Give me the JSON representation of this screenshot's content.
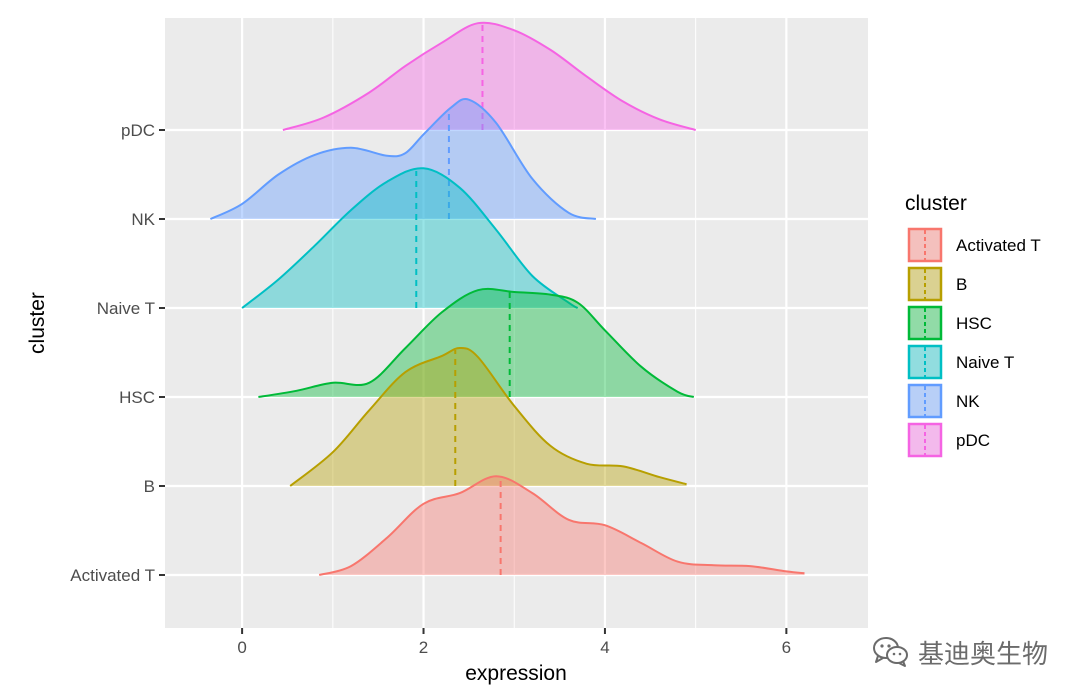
{
  "chart_data": {
    "type": "ridgeline-density",
    "title": "",
    "xlabel": "expression",
    "ylabel": "cluster",
    "xlim": [
      -0.85,
      6.9
    ],
    "x_ticks": [
      0,
      2,
      4,
      6
    ],
    "x_tick_labels": [
      "0",
      "2",
      "4",
      "6"
    ],
    "grid": true,
    "legend": {
      "title": "cluster",
      "position": "right"
    },
    "series": [
      {
        "name": "Activated T",
        "color": "#F8766D",
        "mean": 2.85,
        "points": [
          [
            0.85,
            0.0
          ],
          [
            1.2,
            0.1
          ],
          [
            1.6,
            0.42
          ],
          [
            2.0,
            0.8
          ],
          [
            2.4,
            0.92
          ],
          [
            2.8,
            1.11
          ],
          [
            3.2,
            0.92
          ],
          [
            3.6,
            0.62
          ],
          [
            4.0,
            0.56
          ],
          [
            4.4,
            0.36
          ],
          [
            4.8,
            0.15
          ],
          [
            5.2,
            0.11
          ],
          [
            5.6,
            0.1
          ],
          [
            6.0,
            0.04
          ],
          [
            6.2,
            0.02
          ]
        ]
      },
      {
        "name": "B",
        "color": "#B79F00",
        "mean": 2.35,
        "points": [
          [
            0.53,
            0.0
          ],
          [
            1.0,
            0.38
          ],
          [
            1.4,
            0.85
          ],
          [
            1.8,
            1.28
          ],
          [
            2.2,
            1.46
          ],
          [
            2.4,
            1.55
          ],
          [
            2.6,
            1.45
          ],
          [
            3.0,
            0.9
          ],
          [
            3.4,
            0.45
          ],
          [
            3.8,
            0.25
          ],
          [
            4.2,
            0.22
          ],
          [
            4.6,
            0.1
          ],
          [
            4.9,
            0.02
          ]
        ]
      },
      {
        "name": "HSC",
        "color": "#00BA38",
        "mean": 2.95,
        "points": [
          [
            0.18,
            0.0
          ],
          [
            0.6,
            0.07
          ],
          [
            1.0,
            0.16
          ],
          [
            1.4,
            0.16
          ],
          [
            1.8,
            0.55
          ],
          [
            2.2,
            0.95
          ],
          [
            2.6,
            1.2
          ],
          [
            3.0,
            1.18
          ],
          [
            3.4,
            1.15
          ],
          [
            3.7,
            1.06
          ],
          [
            4.0,
            0.75
          ],
          [
            4.4,
            0.34
          ],
          [
            4.8,
            0.06
          ],
          [
            4.98,
            0.0
          ]
        ]
      },
      {
        "name": "Naive T",
        "color": "#00BFC4",
        "mean": 1.92,
        "points": [
          [
            0.0,
            0.0
          ],
          [
            0.4,
            0.32
          ],
          [
            0.8,
            0.7
          ],
          [
            1.2,
            1.1
          ],
          [
            1.6,
            1.42
          ],
          [
            2.0,
            1.57
          ],
          [
            2.4,
            1.35
          ],
          [
            2.8,
            0.88
          ],
          [
            3.2,
            0.36
          ],
          [
            3.6,
            0.06
          ],
          [
            3.7,
            0.0
          ]
        ]
      },
      {
        "name": "NK",
        "color": "#619CFF",
        "mean": 2.28,
        "points": [
          [
            -0.35,
            0.0
          ],
          [
            0.0,
            0.17
          ],
          [
            0.4,
            0.5
          ],
          [
            0.8,
            0.72
          ],
          [
            1.2,
            0.8
          ],
          [
            1.6,
            0.71
          ],
          [
            1.8,
            0.74
          ],
          [
            2.0,
            0.95
          ],
          [
            2.3,
            1.25
          ],
          [
            2.5,
            1.34
          ],
          [
            2.8,
            1.08
          ],
          [
            3.2,
            0.45
          ],
          [
            3.6,
            0.07
          ],
          [
            3.9,
            0.0
          ]
        ]
      },
      {
        "name": "pDC",
        "color": "#F564E3",
        "mean": 2.65,
        "points": [
          [
            0.45,
            0.0
          ],
          [
            0.9,
            0.14
          ],
          [
            1.4,
            0.42
          ],
          [
            1.8,
            0.72
          ],
          [
            2.2,
            0.98
          ],
          [
            2.6,
            1.2
          ],
          [
            3.0,
            1.12
          ],
          [
            3.4,
            0.9
          ],
          [
            3.8,
            0.6
          ],
          [
            4.2,
            0.32
          ],
          [
            4.6,
            0.12
          ],
          [
            5.0,
            0.0
          ]
        ]
      }
    ]
  },
  "watermark": {
    "text": "基迪奥生物",
    "icon": "wechat-icon",
    "color": "#6b6b6b"
  }
}
